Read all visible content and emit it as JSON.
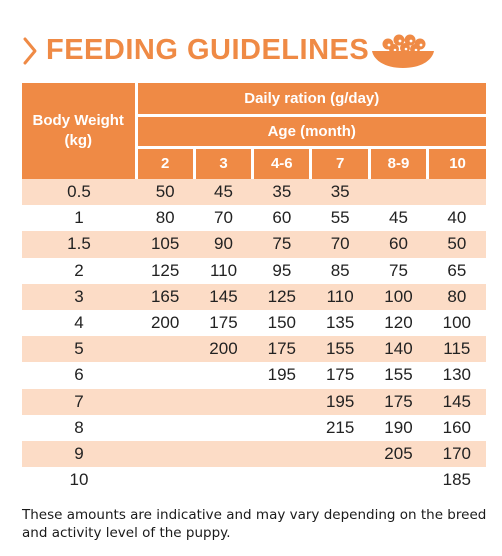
{
  "header": {
    "title": "FEEDING GUIDELINES",
    "accent_color": "#ef8a45",
    "chevron_icon": "chevron-right-icon",
    "bowl_icon": "food-bowl-icon"
  },
  "table": {
    "header_color": "#ef8a45",
    "stripe_color": "#fcdcc6",
    "body_weight_header": "Body Weight (kg)",
    "daily_ration_header": "Daily ration (g/day)",
    "age_header": "Age (month)",
    "months": [
      "2",
      "3",
      "4-6",
      "7",
      "8-9",
      "10"
    ],
    "rows": [
      {
        "weight": "0.5",
        "values": [
          "50",
          "45",
          "35",
          "35",
          "",
          ""
        ]
      },
      {
        "weight": "1",
        "values": [
          "80",
          "70",
          "60",
          "55",
          "45",
          "40"
        ]
      },
      {
        "weight": "1.5",
        "values": [
          "105",
          "90",
          "75",
          "70",
          "60",
          "50"
        ]
      },
      {
        "weight": "2",
        "values": [
          "125",
          "110",
          "95",
          "85",
          "75",
          "65"
        ]
      },
      {
        "weight": "3",
        "values": [
          "165",
          "145",
          "125",
          "110",
          "100",
          "80"
        ]
      },
      {
        "weight": "4",
        "values": [
          "200",
          "175",
          "150",
          "135",
          "120",
          "100"
        ]
      },
      {
        "weight": "5",
        "values": [
          "",
          "200",
          "175",
          "155",
          "140",
          "115"
        ]
      },
      {
        "weight": "6",
        "values": [
          "",
          "",
          "195",
          "175",
          "155",
          "130"
        ]
      },
      {
        "weight": "7",
        "values": [
          "",
          "",
          "",
          "195",
          "175",
          "145"
        ]
      },
      {
        "weight": "8",
        "values": [
          "",
          "",
          "",
          "215",
          "190",
          "160"
        ]
      },
      {
        "weight": "9",
        "values": [
          "",
          "",
          "",
          "",
          "205",
          "170"
        ]
      },
      {
        "weight": "10",
        "values": [
          "",
          "",
          "",
          "",
          "",
          "185"
        ]
      }
    ]
  },
  "footnote": "These amounts are indicative and may vary depending on the breed and activity level of the puppy."
}
